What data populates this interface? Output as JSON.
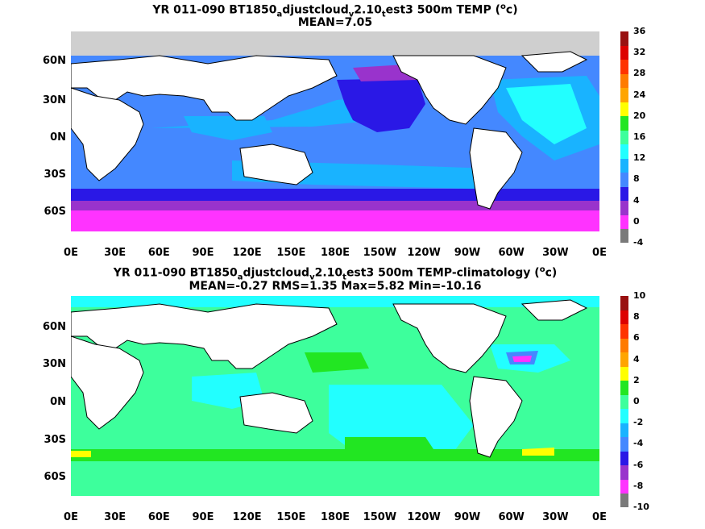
{
  "top": {
    "title_line1": [
      "YR 011-090 BT1850",
      "a",
      "djustcloud",
      "v",
      "2.10",
      "t",
      "est3 500m TEMP (",
      "o",
      "c)"
    ],
    "title_line2": "MEAN=7.05",
    "y_ticks": [
      "60N",
      "30N",
      "0N",
      "30S",
      "60S"
    ],
    "x_ticks": [
      "0E",
      "30E",
      "60E",
      "90E",
      "120E",
      "150E",
      "180E",
      "150W",
      "120W",
      "90W",
      "60W",
      "30W",
      "0E"
    ],
    "colorbar": {
      "labels": [
        "36",
        "32",
        "28",
        "24",
        "20",
        "16",
        "12",
        "8",
        "4",
        "0",
        "-4"
      ],
      "colors": [
        "#7a7a7a",
        "#ff33ff",
        "#9933cc",
        "#2a18e6",
        "#4488ff",
        "#19b3ff",
        "#22ffff",
        "#3dff9c",
        "#22e622",
        "#ffff00",
        "#ffa500",
        "#ff7b00",
        "#ff3300",
        "#dd0000",
        "#991111"
      ]
    }
  },
  "bottom": {
    "title_line1": [
      "YR 011-090 BT1850",
      "a",
      "djustcloud",
      "v",
      "2.10",
      "t",
      "est3 500m TEMP-climatology (",
      "o",
      "c)"
    ],
    "title_line2": "MEAN=-0.27   RMS=1.35   Max=5.82   Min=-10.16",
    "y_ticks": [
      "60N",
      "30N",
      "0N",
      "30S",
      "60S"
    ],
    "x_ticks": [
      "0E",
      "30E",
      "60E",
      "90E",
      "120E",
      "150E",
      "180E",
      "150W",
      "120W",
      "90W",
      "60W",
      "30W",
      "0E"
    ],
    "colorbar": {
      "labels": [
        "10",
        "8",
        "6",
        "4",
        "2",
        "0",
        "-2",
        "-4",
        "-6",
        "-8",
        "-10"
      ],
      "colors": [
        "#7a7a7a",
        "#ff33ff",
        "#9933cc",
        "#2a18e6",
        "#4488ff",
        "#19b3ff",
        "#22ffff",
        "#3dff9c",
        "#22e622",
        "#ffff00",
        "#ffa500",
        "#ff7b00",
        "#ff3300",
        "#dd0000",
        "#991111"
      ]
    }
  }
}
